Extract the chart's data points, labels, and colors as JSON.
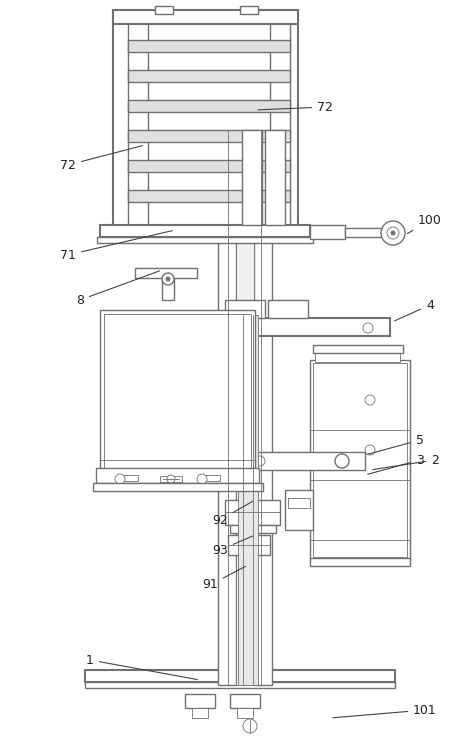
{
  "bg_color": "#ffffff",
  "lc": "#707070",
  "lw": 1.0,
  "tlw": 0.6,
  "thk": 1.5,
  "fig_w": 4.64,
  "fig_h": 7.38,
  "dpi": 100
}
